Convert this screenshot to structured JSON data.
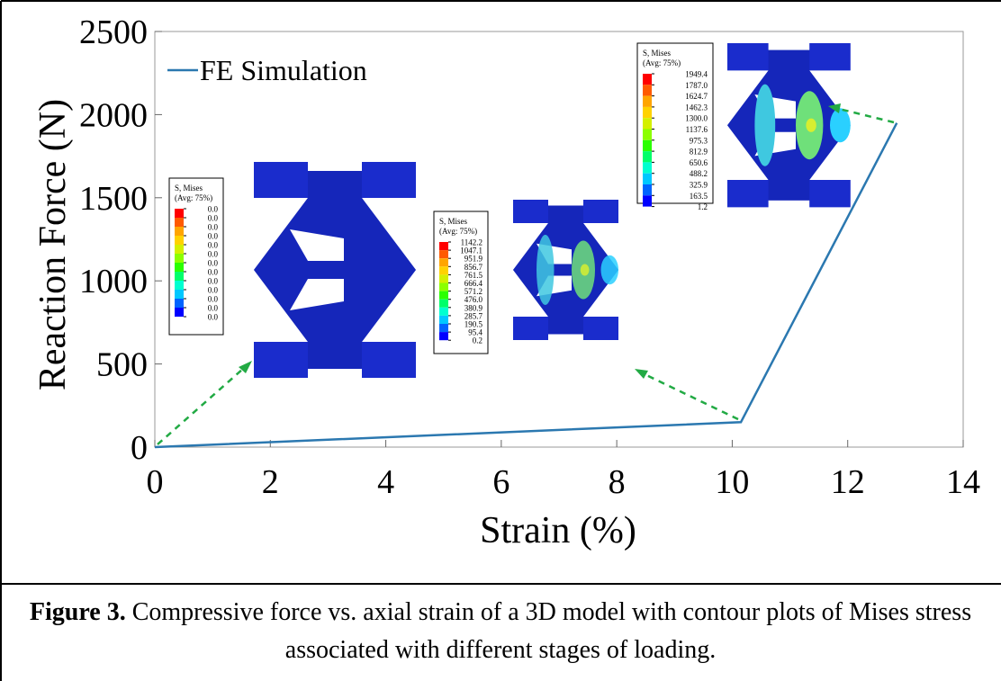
{
  "chart_data": {
    "type": "line",
    "xlabel": "Strain (%)",
    "ylabel": "Reaction Force (N)",
    "xlim": [
      0,
      14
    ],
    "xticks": [
      0,
      2,
      4,
      6,
      8,
      10,
      12,
      14
    ],
    "ylim": [
      0,
      2500
    ],
    "yticks": [
      0,
      500,
      1000,
      1500,
      2000,
      2500
    ],
    "legend": "upper left",
    "series": [
      {
        "name": "FE Simulation",
        "color": "#2b78b0",
        "x": [
          0,
          10.15,
          12.85
        ],
        "values": [
          0,
          150,
          1950
        ]
      }
    ],
    "insets": [
      {
        "title": "S, Mises",
        "subtitle": "(Avg: 75%)",
        "labels": [
          "0.0",
          "0.0",
          "0.0",
          "0.0",
          "0.0",
          "0.0",
          "0.0",
          "0.0",
          "0.0",
          "0.0",
          "0.0",
          "0.0",
          "0.0"
        ]
      },
      {
        "title": "S, Mises",
        "subtitle": "(Avg: 75%)",
        "labels": [
          "1142.2",
          "1047.1",
          "951.9",
          "856.7",
          "761.5",
          "666.4",
          "571.2",
          "476.0",
          "380.9",
          "285.7",
          "190.5",
          "95.4",
          "0.2"
        ]
      },
      {
        "title": "S, Mises",
        "subtitle": "(Avg: 75%)",
        "labels": [
          "1949.4",
          "1787.0",
          "1624.7",
          "1462.3",
          "1300.0",
          "1137.6",
          "975.3",
          "812.9",
          "650.6",
          "488.2",
          "325.9",
          "163.5",
          "1.2"
        ]
      }
    ]
  },
  "caption": {
    "label": "Figure 3.",
    "text": "Compressive force vs. axial strain of a 3D model with contour plots of Mises stress associated with different stages of loading."
  }
}
